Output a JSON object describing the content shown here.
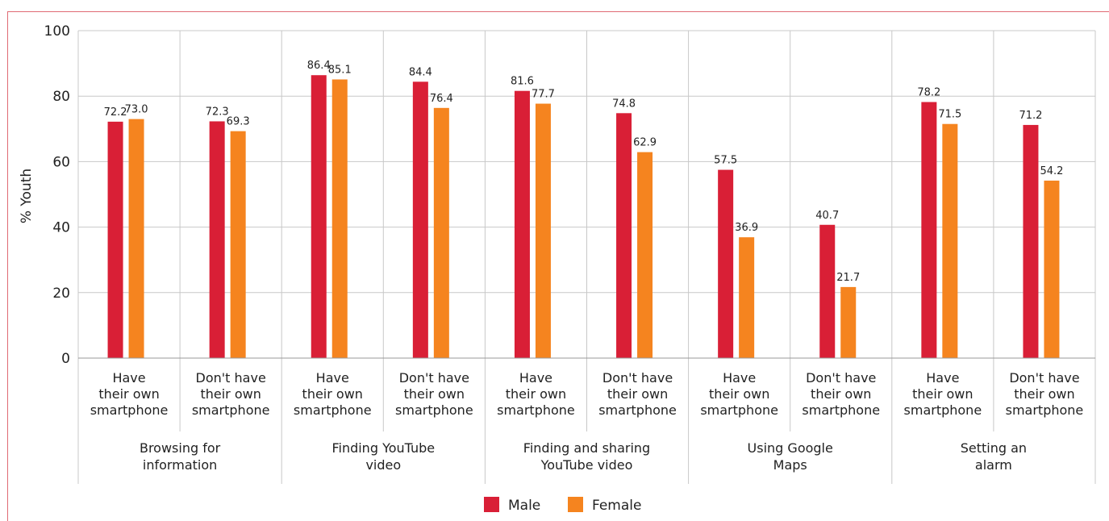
{
  "chart_data": {
    "type": "bar",
    "ylabel": "% Youth",
    "ylim": [
      0,
      100
    ],
    "yticks": [
      0,
      20,
      40,
      60,
      80,
      100
    ],
    "grid": true,
    "legend_position": "bottom",
    "colors": {
      "Male": "#d91f36",
      "Female": "#f5841f"
    },
    "groups": [
      "Browsing for information",
      "Finding YouTube video",
      "Finding and sharing YouTube video",
      "Using Google Maps",
      "Setting an alarm"
    ],
    "subcategories": [
      "Have their own smartphone",
      "Don't have their own smartphone"
    ],
    "series": [
      {
        "name": "Male",
        "values": [
          72.2,
          72.3,
          86.4,
          84.4,
          81.6,
          74.8,
          57.5,
          40.7,
          78.2,
          71.2
        ]
      },
      {
        "name": "Female",
        "values": [
          73.0,
          69.3,
          85.1,
          76.4,
          77.7,
          62.9,
          36.9,
          21.7,
          71.5,
          54.2
        ]
      }
    ],
    "value_labels": {
      "Male": [
        "72.2",
        "72.3",
        "86.4",
        "84.4",
        "81.6",
        "74.8",
        "57.5",
        "40.7",
        "78.2",
        "71.2"
      ],
      "Female": [
        "73.0",
        "69.3",
        "85.1",
        "76.4",
        "77.7",
        "62.9",
        "36.9",
        "21.7",
        "71.5",
        "54.2"
      ]
    }
  }
}
